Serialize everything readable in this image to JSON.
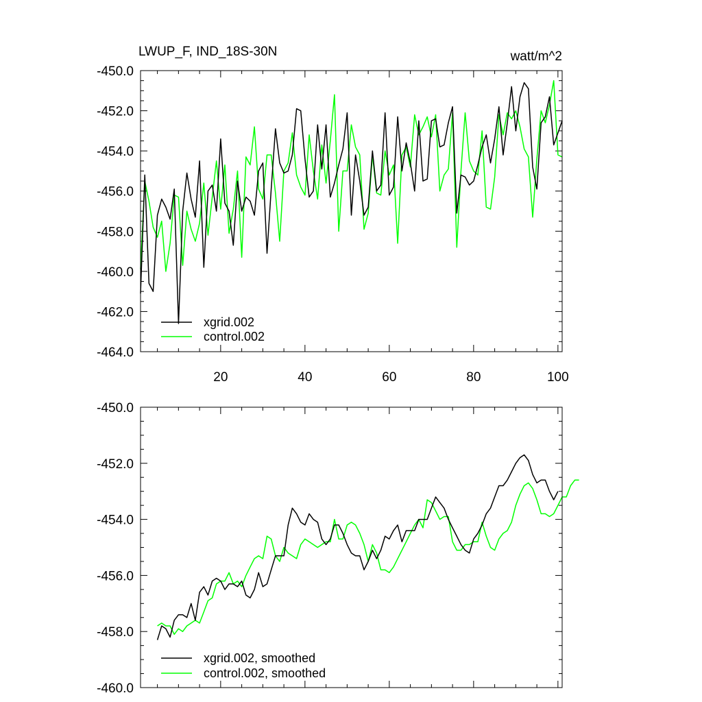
{
  "chart_data": [
    {
      "type": "line",
      "title_left": "LWUP_F, IND_18S-30N",
      "title_right": "watt/m^2",
      "xlabel": "",
      "ylabel": "",
      "xlim": [
        1,
        101
      ],
      "ylim": [
        -464,
        -450
      ],
      "x_ticks": [
        20,
        40,
        60,
        80,
        100
      ],
      "x_tick_labels": [
        "20",
        "40",
        "60",
        "80",
        "100"
      ],
      "y_ticks": [
        -464,
        -462,
        -460,
        -458,
        -456,
        -454,
        -452,
        -450
      ],
      "y_tick_labels": [
        "-464.0",
        "-462.0",
        "-460.0",
        "-458.0",
        "-456.0",
        "-454.0",
        "-452.0",
        "-450.0"
      ],
      "legend_position": "bottom-left",
      "x_start": 1,
      "series": [
        {
          "name": "xgrid.002",
          "color": "#000000",
          "values": [
            -461.1,
            -455.2,
            -460.6,
            -461.0,
            -457.2,
            -456.4,
            -456.8,
            -457.4,
            -455.9,
            -462.6,
            -457.0,
            -455.1,
            -456.4,
            -457.3,
            -454.5,
            -459.8,
            -456.0,
            -455.7,
            -457.0,
            -453.4,
            -456.6,
            -457.0,
            -458.7,
            -455.5,
            -457.0,
            -456.3,
            -456.5,
            -457.2,
            -455.0,
            -454.6,
            -459.1,
            -455.9,
            -452.9,
            -454.6,
            -455.1,
            -455.0,
            -454.2,
            -451.9,
            -452.0,
            -454.4,
            -456.3,
            -456.0,
            -452.7,
            -454.9,
            -452.7,
            -456.3,
            -455.6,
            -454.7,
            -453.9,
            -452.1,
            -457.2,
            -454.2,
            -455.5,
            -457.2,
            -456.8,
            -454.0,
            -456.0,
            -455.7,
            -452.1,
            -456.2,
            -455.8,
            -452.3,
            -455.0,
            -453.6,
            -454.6,
            -456.0,
            -452.5,
            -455.5,
            -455.4,
            -452.5,
            -452.4,
            -453.8,
            -453.7,
            -452.6,
            -451.8,
            -457.1,
            -455.2,
            -455.3,
            -455.7,
            -455.5,
            -454.7,
            -453.8,
            -453.2,
            -454.6,
            -453.4,
            -451.8,
            -454.2,
            -452.6,
            -450.8,
            -453.0,
            -451.3,
            -450.6,
            -450.9,
            -454.8,
            -455.9,
            -452.6,
            -452.3,
            -451.3,
            -453.7,
            -453.1,
            -452.5
          ]
        },
        {
          "name": "control.002",
          "color": "#00ff00",
          "values": [
            -459.9,
            -455.5,
            -456.5,
            -457.8,
            -458.3,
            -457.5,
            -460.0,
            -458.6,
            -456.2,
            -456.3,
            -459.7,
            -457.0,
            -457.9,
            -458.5,
            -457.6,
            -455.6,
            -458.2,
            -456.3,
            -454.5,
            -456.9,
            -454.7,
            -458.1,
            -456.9,
            -455.0,
            -459.3,
            -454.3,
            -454.7,
            -452.8,
            -455.9,
            -456.4,
            -454.2,
            -454.2,
            -456.1,
            -458.5,
            -455.0,
            -454.6,
            -453.1,
            -455.2,
            -455.8,
            -456.2,
            -453.2,
            -455.0,
            -456.4,
            -453.7,
            -455.6,
            -453.5,
            -451.2,
            -458.0,
            -455.0,
            -455.0,
            -452.7,
            -453.8,
            -454.2,
            -457.9,
            -457.1,
            -454.2,
            -456.1,
            -456.2,
            -454.0,
            -455.2,
            -454.7,
            -458.6,
            -454.2,
            -453.8,
            -454.8,
            -452.2,
            -453.2,
            -452.8,
            -452.3,
            -453.3,
            -452.2,
            -456.0,
            -455.2,
            -454.9,
            -452.1,
            -458.8,
            -455.0,
            -452.1,
            -454.5,
            -455.0,
            -455.2,
            -453.0,
            -456.8,
            -456.9,
            -455.3,
            -452.2,
            -453.2,
            -452.1,
            -452.4,
            -452.0,
            -452.8,
            -453.9,
            -454.3,
            -457.3,
            -454.4,
            -452.0,
            -452.6,
            -451.7,
            -450.5,
            -454.2,
            -454.3
          ]
        }
      ]
    },
    {
      "type": "line",
      "title_left": "",
      "title_right": "",
      "xlabel": "",
      "ylabel": "",
      "xlim": [
        1,
        101
      ],
      "ylim": [
        -460,
        -450
      ],
      "x_ticks": [
        20,
        40,
        60,
        80,
        100
      ],
      "x_tick_labels": [],
      "y_ticks": [
        -460,
        -458,
        -456,
        -454,
        -452,
        -450
      ],
      "y_tick_labels": [
        "-460.0",
        "-458.0",
        "-456.0",
        "-454.0",
        "-452.0",
        "-450.0"
      ],
      "legend_position": "bottom-left",
      "x_start": 5,
      "series": [
        {
          "name": "xgrid.002, smoothed",
          "color": "#000000",
          "values": [
            -458.3,
            -457.8,
            -457.9,
            -458.2,
            -457.6,
            -457.4,
            -457.4,
            -457.5,
            -457.0,
            -457.6,
            -456.6,
            -456.4,
            -456.7,
            -456.2,
            -456.1,
            -456.2,
            -456.5,
            -456.3,
            -456.3,
            -456.4,
            -456.2,
            -456.7,
            -456.8,
            -456.5,
            -455.9,
            -456.4,
            -456.3,
            -455.8,
            -455.3,
            -455.3,
            -455.3,
            -454.2,
            -453.6,
            -453.8,
            -454.1,
            -454.2,
            -453.8,
            -454.0,
            -454.1,
            -454.7,
            -454.9,
            -454.7,
            -454.2,
            -454.2,
            -454.5,
            -454.9,
            -455.2,
            -455.3,
            -455.3,
            -455.8,
            -455.5,
            -455.1,
            -455.4,
            -455.1,
            -454.6,
            -454.7,
            -454.4,
            -454.2,
            -454.8,
            -454.4,
            -454.4,
            -454.4,
            -454.0,
            -454.0,
            -454.0,
            -453.6,
            -453.2,
            -453.4,
            -453.6,
            -454.0,
            -454.3,
            -454.6,
            -454.9,
            -455.1,
            -455.2,
            -454.7,
            -454.5,
            -454.2,
            -453.8,
            -453.6,
            -453.2,
            -452.8,
            -452.8,
            -452.6,
            -452.3,
            -452.0,
            -451.8,
            -451.7,
            -451.9,
            -452.4,
            -452.7,
            -452.6,
            -452.6,
            -453.0,
            -453.3,
            -453.0
          ]
        },
        {
          "name": "control.002, smoothed",
          "color": "#00ff00",
          "values": [
            -457.8,
            -457.7,
            -457.8,
            -457.8,
            -458.1,
            -457.9,
            -458.0,
            -457.8,
            -457.7,
            -457.6,
            -457.7,
            -457.3,
            -456.9,
            -456.8,
            -456.3,
            -456.2,
            -456.2,
            -455.9,
            -456.3,
            -456.2,
            -456.4,
            -456.0,
            -455.7,
            -455.4,
            -455.3,
            -455.4,
            -454.6,
            -454.7,
            -455.3,
            -455.5,
            -455.0,
            -455.2,
            -455.3,
            -455.4,
            -454.9,
            -454.7,
            -454.8,
            -454.9,
            -455.0,
            -454.9,
            -454.8,
            -454.8,
            -454.0,
            -454.7,
            -454.7,
            -454.2,
            -454.1,
            -454.2,
            -454.5,
            -454.9,
            -455.5,
            -454.9,
            -455.2,
            -455.8,
            -455.8,
            -455.9,
            -455.7,
            -455.4,
            -455.1,
            -454.8,
            -454.5,
            -454.2,
            -454.0,
            -454.3,
            -453.3,
            -453.4,
            -453.7,
            -454.0,
            -453.9,
            -453.9,
            -454.8,
            -455.1,
            -455.1,
            -454.9,
            -454.9,
            -454.8,
            -454.8,
            -454.1,
            -454.6,
            -455.0,
            -455.1,
            -454.7,
            -454.5,
            -454.4,
            -454.1,
            -453.5,
            -453.1,
            -452.8,
            -452.7,
            -452.9,
            -453.3,
            -453.8,
            -453.8,
            -453.9,
            -453.8,
            -453.5,
            -453.2,
            -453.2,
            -452.8,
            -452.6,
            -452.6
          ]
        }
      ]
    }
  ]
}
